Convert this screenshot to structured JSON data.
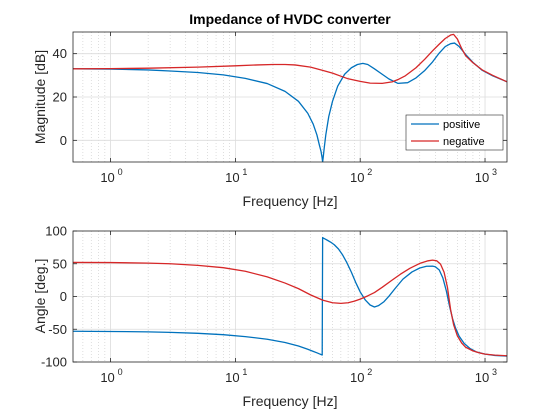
{
  "chart_data": [
    {
      "type": "line",
      "title": "Impedance of HVDC converter",
      "xlabel": "Frequency [Hz]",
      "ylabel": "Magnitude [dB]",
      "xscale": "log",
      "xlim": [
        0.5,
        1500
      ],
      "ylim": [
        -10,
        50
      ],
      "xticks": [
        1,
        10,
        100,
        1000
      ],
      "xtick_labels": [
        {
          "base": "10",
          "exp": "0"
        },
        {
          "base": "10",
          "exp": "1"
        },
        {
          "base": "10",
          "exp": "2"
        },
        {
          "base": "10",
          "exp": "3"
        }
      ],
      "yticks": [
        0,
        20,
        40
      ],
      "ytick_labels": [
        "0",
        "20",
        "40"
      ],
      "grid": true,
      "legend_position": "lower-right",
      "series": [
        {
          "name": "positive",
          "color": "#0072BD",
          "x": [
            0.5,
            1,
            2,
            3,
            5,
            8,
            12,
            18,
            25,
            32,
            38,
            42,
            45,
            47,
            48.5,
            49.5,
            50,
            50.5,
            51.5,
            53,
            56,
            60,
            66,
            75,
            85,
            95,
            105,
            115,
            130,
            150,
            170,
            200,
            240,
            280,
            330,
            380,
            430,
            480,
            530,
            570,
            620,
            700,
            800,
            950,
            1150,
            1500
          ],
          "y": [
            33,
            32.9,
            32.5,
            32,
            31.3,
            30.2,
            28.6,
            26.2,
            22.6,
            18,
            12.5,
            7.5,
            2.5,
            -2,
            -5,
            -8,
            -10,
            -8,
            -3.5,
            2.5,
            11,
            18,
            25,
            30.5,
            33.5,
            35,
            35.5,
            35,
            33,
            30.5,
            28.3,
            26.3,
            26.6,
            28.8,
            32.3,
            36.2,
            40.3,
            43.3,
            44.6,
            44.9,
            43.3,
            39.6,
            36,
            32.3,
            29.8,
            27
          ]
        },
        {
          "name": "negative",
          "color": "#D62728",
          "x": [
            0.5,
            1,
            2,
            5,
            10,
            15,
            20,
            25,
            30,
            40,
            50,
            60,
            70,
            80,
            100,
            120,
            150,
            180,
            200,
            230,
            280,
            330,
            380,
            430,
            480,
            530,
            560,
            600,
            650,
            700,
            800,
            950,
            1150,
            1500
          ],
          "y": [
            33,
            33.1,
            33.3,
            33.8,
            34.4,
            34.8,
            35,
            35,
            34.8,
            33.8,
            32.3,
            31,
            29.6,
            28.4,
            27.2,
            26.4,
            26.3,
            27,
            28,
            29.8,
            33.5,
            37.5,
            41.3,
            44.4,
            47,
            48.6,
            48.9,
            46.8,
            42.4,
            39,
            35.8,
            32.5,
            30,
            27
          ]
        }
      ]
    },
    {
      "type": "line",
      "title": "",
      "xlabel": "Frequency [Hz]",
      "ylabel": "Angle [deg.]",
      "xscale": "log",
      "xlim": [
        0.5,
        1500
      ],
      "ylim": [
        -100,
        100
      ],
      "xticks": [
        1,
        10,
        100,
        1000
      ],
      "xtick_labels": [
        {
          "base": "10",
          "exp": "0"
        },
        {
          "base": "10",
          "exp": "1"
        },
        {
          "base": "10",
          "exp": "2"
        },
        {
          "base": "10",
          "exp": "3"
        }
      ],
      "yticks": [
        -100,
        -50,
        0,
        50,
        100
      ],
      "ytick_labels": [
        "-100",
        "-50",
        "0",
        "50",
        "100"
      ],
      "grid": true,
      "series": [
        {
          "name": "positive",
          "color": "#0072BD",
          "x": [
            0.5,
            1,
            2,
            3,
            5,
            8,
            12,
            18,
            25,
            32,
            38,
            42,
            45,
            47,
            48.5,
            49.6,
            50,
            50.4,
            52,
            55,
            58,
            62,
            67,
            72,
            78,
            85,
            92,
            100,
            110,
            120,
            130,
            140,
            155,
            170,
            190,
            220,
            260,
            300,
            340,
            380,
            400,
            430,
            460,
            490,
            520,
            550,
            580,
            620,
            680,
            760,
            850,
            1000,
            1200,
            1500
          ],
          "y": [
            -53,
            -53.4,
            -54,
            -54.8,
            -56.2,
            -58.3,
            -61.2,
            -65.2,
            -70.2,
            -75.5,
            -80.5,
            -83.8,
            -86,
            -87.5,
            -88.5,
            -89.3,
            90,
            89.5,
            88,
            85.5,
            83,
            79,
            72.5,
            64,
            52,
            37,
            21.5,
            7,
            -5.5,
            -13,
            -16,
            -14,
            -8,
            0.5,
            12,
            26.5,
            37.5,
            43.5,
            46.2,
            46.4,
            45.4,
            40.5,
            28,
            8.5,
            -15,
            -34,
            -48,
            -60.5,
            -71.5,
            -79.5,
            -84.5,
            -88,
            -90,
            -91
          ]
        },
        {
          "name": "negative",
          "color": "#D62728",
          "x": [
            0.5,
            1,
            2,
            3,
            5,
            8,
            12,
            18,
            25,
            32,
            40,
            50,
            60,
            70,
            80,
            90,
            100,
            115,
            130,
            150,
            180,
            210,
            250,
            300,
            350,
            380,
            410,
            440,
            470,
            500,
            530,
            560,
            600,
            650,
            700,
            800,
            900,
            1000,
            1200,
            1500
          ],
          "y": [
            52,
            51.8,
            51,
            50,
            47.5,
            44,
            38.5,
            30,
            20.5,
            12,
            2.5,
            -5.5,
            -9.5,
            -10.5,
            -9.5,
            -7,
            -4,
            1,
            6,
            14,
            25,
            34,
            43,
            50.5,
            54.5,
            55.5,
            54.5,
            49.5,
            37,
            14,
            -20,
            -43,
            -60,
            -71,
            -77.5,
            -83,
            -86,
            -88,
            -89.5,
            -90.5
          ]
        }
      ]
    }
  ]
}
